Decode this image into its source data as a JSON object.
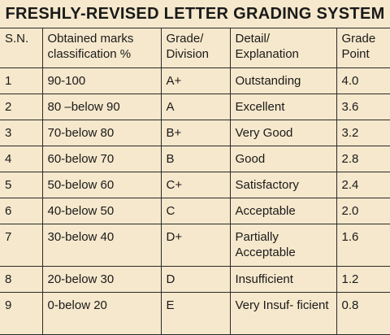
{
  "title": "FRESHLY-REVISED LETTER GRADING SYSTEM",
  "headers": {
    "sn": "S.N.",
    "marks": "Obtained marks classification %",
    "grade": "Grade/ Division",
    "detail": "Detail/ Explanation",
    "point": "Grade Point"
  },
  "rows": [
    {
      "sn": "1",
      "marks": "90-100",
      "grade": "A+",
      "detail": "Outstanding",
      "point": "4.0"
    },
    {
      "sn": "2",
      "marks": "80 –below 90",
      "grade": "A",
      "detail": "Excellent",
      "point": "3.6"
    },
    {
      "sn": "3",
      "marks": "70-below 80",
      "grade": "B+",
      "detail": "Very Good",
      "point": "3.2"
    },
    {
      "sn": "4",
      "marks": "60-below 70",
      "grade": "B",
      "detail": "Good",
      "point": "2.8"
    },
    {
      "sn": "5",
      "marks": "50-below 60",
      "grade": "C+",
      "detail": "Satisfactory",
      "point": "2.4"
    },
    {
      "sn": "6",
      "marks": "40-below 50",
      "grade": "C",
      "detail": "Acceptable",
      "point": "2.0"
    },
    {
      "sn": "7",
      "marks": "30-below 40",
      "grade": "D+",
      "detail": "Partially Acceptable",
      "point": "1.6"
    },
    {
      "sn": "8",
      "marks": "20-below 30",
      "grade": "D",
      "detail": "Insufficient",
      "point": "1.2"
    },
    {
      "sn": "9",
      "marks": "0-below 20",
      "grade": "E",
      "detail": "Very Insuf- ficient",
      "point": "0.8"
    }
  ]
}
